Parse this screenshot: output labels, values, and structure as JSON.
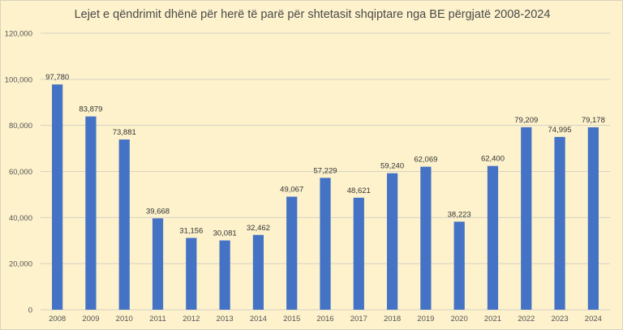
{
  "chart_data": {
    "type": "bar",
    "title": "Lejet e qëndrimit dhënë për herë të parë për shtetasit shqiptare nga BE përgjatë 2008-2024",
    "categories": [
      "2008",
      "2009",
      "2010",
      "2011",
      "2012",
      "2013",
      "2014",
      "2015",
      "2016",
      "2017",
      "2018",
      "2019",
      "2020",
      "2021",
      "2022",
      "2023",
      "2024"
    ],
    "values": [
      97780,
      83879,
      73881,
      39668,
      31156,
      30081,
      32462,
      49067,
      57229,
      48621,
      59240,
      62069,
      38223,
      62400,
      79209,
      74995,
      79178
    ],
    "data_labels": [
      "97,780",
      "83,879",
      "73,881",
      "39,668",
      "31,156",
      "30,081",
      "32,462",
      "49,067",
      "57,229",
      "48,621",
      "59,240",
      "62,069",
      "38,223",
      "62,400",
      "79,209",
      "74,995",
      "79,178"
    ],
    "y_ticks": [
      0,
      20000,
      40000,
      60000,
      80000,
      100000,
      120000
    ],
    "y_tick_labels": [
      "0",
      "20,000",
      "40,000",
      "60,000",
      "80,000",
      "100,000",
      "120,000"
    ],
    "ylim": [
      0,
      120000
    ],
    "grid": true,
    "bar_color": "#4472c4",
    "background_color": "#fdf2cc"
  }
}
